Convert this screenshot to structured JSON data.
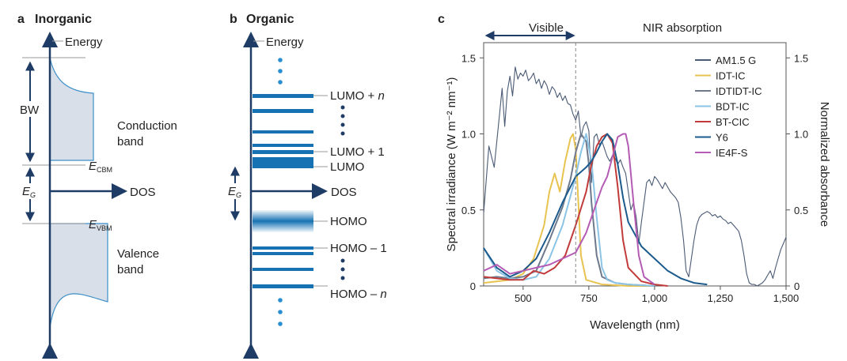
{
  "panel_a": {
    "letter": "a",
    "title": "Inorganic",
    "energy_label": "Energy",
    "dos_label": "DOS",
    "bw_label": "BW",
    "eg_label": "E",
    "eg_sub": "G",
    "ecbm_label": "E",
    "ecbm_sub": "CBM",
    "evbm_label": "E",
    "evbm_sub": "VBM",
    "conduction_line1": "Conduction",
    "conduction_line2": "band",
    "valence_line1": "Valence",
    "valence_line2": "band",
    "colors": {
      "axis": "#1f3c66",
      "band_fill": "#d9dfe8",
      "band_stroke": "#3d8fc9",
      "level_line": "#9a9a9a"
    }
  },
  "panel_b": {
    "letter": "b",
    "title": "Organic",
    "energy_label": "Energy",
    "dos_label": "DOS",
    "eg_label": "E",
    "eg_sub": "G",
    "lumo_n_label": "LUMO + ",
    "lumo_n_italic": "n",
    "lumo1_label": "LUMO + 1",
    "lumo_label": "LUMO",
    "homo_label": "HOMO",
    "homo1_label": "HOMO – 1",
    "homo_n_label": "HOMO – ",
    "homo_n_italic": "n",
    "colors": {
      "level": "#1672b3",
      "dots_light": "#2a8fd0",
      "dots_dark": "#1f3c66"
    }
  },
  "panel_c": {
    "letter": "c",
    "visible_label": "Visible",
    "nir_label": "NIR absorption",
    "visible_nir_boundary_nm": 700
  },
  "chart_data": {
    "type": "line",
    "title": "",
    "xlabel": "Wavelength (nm)",
    "ylabel": "Spectral irradiance (W m⁻² nm⁻¹)",
    "y2label": "Normalized absorbance",
    "xlim": [
      350,
      1500
    ],
    "ylim": [
      0,
      1.6
    ],
    "y2lim": [
      0,
      1.6
    ],
    "x_ticks": [
      500,
      750,
      1000,
      1250,
      1500
    ],
    "x_tick_labels": [
      "500",
      "750",
      "1,000",
      "1,250",
      "1,500"
    ],
    "y_ticks": [
      0,
      0.5,
      1.0,
      1.5
    ],
    "y_tick_labels": [
      "0",
      "0.5",
      "1.0",
      "1.5"
    ],
    "y2_ticks": [
      0,
      0.5,
      1.0,
      1.5
    ],
    "y2_tick_labels": [
      "0",
      "0.5",
      "1.0",
      "1.5"
    ],
    "legend_position": "top-right",
    "series": [
      {
        "name": "AM1.5 G",
        "color": "#4a5a74",
        "axis": "left",
        "x": [
          350,
          370,
          390,
          410,
          420,
          430,
          440,
          450,
          460,
          470,
          480,
          490,
          500,
          510,
          520,
          530,
          540,
          550,
          560,
          570,
          580,
          590,
          600,
          610,
          620,
          630,
          640,
          650,
          660,
          670,
          680,
          690,
          700,
          710,
          720,
          730,
          740,
          750,
          760,
          770,
          780,
          790,
          800,
          810,
          820,
          830,
          840,
          850,
          860,
          870,
          880,
          890,
          900,
          910,
          920,
          930,
          940,
          950,
          960,
          970,
          980,
          990,
          1000,
          1010,
          1020,
          1030,
          1040,
          1050,
          1060,
          1070,
          1080,
          1090,
          1100,
          1110,
          1120,
          1130,
          1140,
          1150,
          1160,
          1170,
          1180,
          1190,
          1200,
          1210,
          1220,
          1230,
          1240,
          1250,
          1260,
          1270,
          1280,
          1290,
          1300,
          1310,
          1320,
          1330,
          1340,
          1350,
          1360,
          1370,
          1380,
          1390,
          1400,
          1410,
          1420,
          1430,
          1440,
          1450,
          1460,
          1470,
          1480,
          1490,
          1500
        ],
        "y": [
          0.48,
          0.92,
          0.78,
          1.12,
          1.3,
          1.05,
          1.28,
          1.38,
          1.25,
          1.44,
          1.36,
          1.4,
          1.38,
          1.42,
          1.35,
          1.37,
          1.4,
          1.33,
          1.36,
          1.3,
          1.35,
          1.32,
          1.26,
          1.31,
          1.29,
          1.24,
          1.27,
          1.22,
          1.25,
          1.2,
          1.19,
          1.13,
          1.09,
          1.15,
          0.98,
          1.05,
          1.08,
          1.02,
          0.68,
          0.98,
          1.0,
          0.93,
          0.95,
          0.9,
          0.85,
          0.82,
          0.86,
          0.84,
          0.8,
          0.83,
          0.78,
          0.74,
          0.62,
          0.5,
          0.55,
          0.45,
          0.28,
          0.42,
          0.55,
          0.68,
          0.7,
          0.66,
          0.72,
          0.7,
          0.67,
          0.64,
          0.68,
          0.65,
          0.62,
          0.6,
          0.58,
          0.55,
          0.45,
          0.3,
          0.1,
          0.06,
          0.18,
          0.3,
          0.4,
          0.45,
          0.47,
          0.48,
          0.49,
          0.48,
          0.46,
          0.47,
          0.45,
          0.46,
          0.44,
          0.43,
          0.41,
          0.42,
          0.4,
          0.38,
          0.36,
          0.3,
          0.2,
          0.08,
          0.02,
          0.01,
          0.01,
          0.0,
          0.01,
          0.02,
          0.04,
          0.07,
          0.1,
          0.05,
          0.12,
          0.18,
          0.24,
          0.28,
          0.32
        ]
      },
      {
        "name": "IDT-IC",
        "color": "#e8c350",
        "axis": "right",
        "x": [
          350,
          400,
          450,
          500,
          540,
          580,
          600,
          620,
          640,
          660,
          680,
          690,
          700,
          710,
          720,
          740,
          800,
          900,
          1000
        ],
        "y": [
          0.02,
          0.03,
          0.04,
          0.08,
          0.18,
          0.4,
          0.62,
          0.74,
          0.62,
          0.82,
          0.97,
          1.0,
          0.9,
          0.55,
          0.2,
          0.04,
          0.01,
          0.0,
          0.0
        ]
      },
      {
        "name": "IDTIDT-IC",
        "color": "#6e7a8c",
        "axis": "right",
        "x": [
          350,
          400,
          450,
          500,
          550,
          600,
          650,
          680,
          700,
          720,
          740,
          750,
          760,
          780,
          800,
          850,
          900,
          1000
        ],
        "y": [
          0.05,
          0.06,
          0.05,
          0.06,
          0.1,
          0.3,
          0.52,
          0.7,
          0.88,
          1.0,
          0.95,
          0.8,
          0.55,
          0.2,
          0.06,
          0.02,
          0.01,
          0.0
        ]
      },
      {
        "name": "BDT-IC",
        "color": "#8cc4e6",
        "axis": "right",
        "x": [
          350,
          400,
          450,
          500,
          550,
          600,
          650,
          700,
          720,
          740,
          760,
          780,
          800,
          820,
          850,
          900,
          1000
        ],
        "y": [
          0.25,
          0.1,
          0.05,
          0.04,
          0.06,
          0.18,
          0.4,
          0.72,
          0.88,
          1.0,
          0.82,
          0.45,
          0.12,
          0.04,
          0.02,
          0.01,
          0.0
        ]
      },
      {
        "name": "BT-CIC",
        "color": "#c23b3b",
        "axis": "right",
        "x": [
          350,
          400,
          450,
          500,
          540,
          580,
          620,
          660,
          700,
          740,
          760,
          780,
          800,
          820,
          840,
          860,
          880,
          900,
          950,
          1000,
          1050
        ],
        "y": [
          0.06,
          0.05,
          0.04,
          0.04,
          0.1,
          0.08,
          0.12,
          0.2,
          0.4,
          0.62,
          0.8,
          0.92,
          0.98,
          1.0,
          0.94,
          0.65,
          0.3,
          0.12,
          0.03,
          0.01,
          0.0
        ]
      },
      {
        "name": "Y6",
        "color": "#1b5a8c",
        "axis": "right",
        "x": [
          350,
          400,
          450,
          500,
          550,
          600,
          650,
          700,
          740,
          760,
          780,
          800,
          820,
          840,
          860,
          880,
          900,
          950,
          1000,
          1050,
          1100,
          1150,
          1200
        ],
        "y": [
          0.25,
          0.12,
          0.06,
          0.1,
          0.18,
          0.35,
          0.55,
          0.72,
          0.78,
          0.82,
          0.88,
          0.95,
          1.0,
          0.96,
          0.8,
          0.58,
          0.42,
          0.26,
          0.18,
          0.1,
          0.05,
          0.02,
          0.01
        ]
      },
      {
        "name": "IE4F-S",
        "color": "#b45bb4",
        "axis": "right",
        "x": [
          350,
          400,
          450,
          500,
          550,
          600,
          650,
          700,
          740,
          780,
          800,
          820,
          840,
          860,
          880,
          890,
          900,
          920,
          940,
          960,
          1000
        ],
        "y": [
          0.1,
          0.14,
          0.08,
          0.1,
          0.12,
          0.14,
          0.18,
          0.22,
          0.35,
          0.55,
          0.65,
          0.72,
          0.85,
          0.98,
          1.0,
          1.0,
          0.92,
          0.55,
          0.2,
          0.06,
          0.01
        ]
      }
    ]
  }
}
